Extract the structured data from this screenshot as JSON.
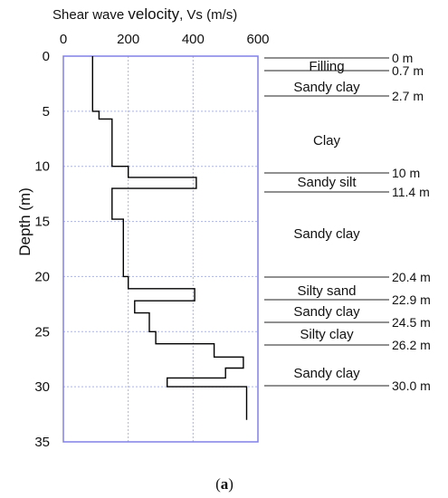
{
  "chart_data": {
    "type": "line",
    "title_prefix": "Shear wave ",
    "title_emph": "velocity",
    "title_suffix": ", Vs (m/s)",
    "xlabel": "Shear wave velocity, Vs (m/s)",
    "ylabel": "Depth (m)",
    "xlim": [
      0,
      600
    ],
    "ylim": [
      0,
      35
    ],
    "y_inverted": true,
    "x_axis_position": "top",
    "grid": true,
    "xticks": [
      0,
      200,
      400,
      600
    ],
    "yticks": [
      0,
      5,
      10,
      15,
      20,
      25,
      30,
      35
    ],
    "series": [
      {
        "values": [
          {
            "depth_top": 0,
            "depth_bottom": 5,
            "vs": 90
          },
          {
            "depth_top": 5,
            "depth_bottom": 5.7,
            "vs": 110
          },
          {
            "depth_top": 5.7,
            "depth_bottom": 10,
            "vs": 150
          },
          {
            "depth_top": 10,
            "depth_bottom": 11,
            "vs": 200
          },
          {
            "depth_top": 11,
            "depth_bottom": 12,
            "vs": 410
          },
          {
            "depth_top": 12,
            "depth_bottom": 14.8,
            "vs": 150
          },
          {
            "depth_top": 14.8,
            "depth_bottom": 20,
            "vs": 185
          },
          {
            "depth_top": 20,
            "depth_bottom": 21.1,
            "vs": 200
          },
          {
            "depth_top": 21.1,
            "depth_bottom": 22.2,
            "vs": 405
          },
          {
            "depth_top": 22.2,
            "depth_bottom": 23.3,
            "vs": 220
          },
          {
            "depth_top": 23.3,
            "depth_bottom": 25,
            "vs": 265
          },
          {
            "depth_top": 25,
            "depth_bottom": 26.1,
            "vs": 285
          },
          {
            "depth_top": 26.1,
            "depth_bottom": 27.3,
            "vs": 465
          },
          {
            "depth_top": 27.3,
            "depth_bottom": 28.3,
            "vs": 555
          },
          {
            "depth_top": 28.3,
            "depth_bottom": 29.2,
            "vs": 500
          },
          {
            "depth_top": 29.2,
            "depth_bottom": 30.0,
            "vs": 320
          },
          {
            "depth_top": 30.0,
            "depth_bottom": 33,
            "vs": 565
          }
        ]
      }
    ],
    "layers": [
      {
        "name": "Filling",
        "top": 0,
        "bottom": 0.7
      },
      {
        "name": "Sandy clay",
        "top": 0.7,
        "bottom": 2.7
      },
      {
        "name": "Clay",
        "top": 2.7,
        "bottom": 10
      },
      {
        "name": "Sandy silt",
        "top": 10,
        "bottom": 11.4
      },
      {
        "name": "Sandy clay",
        "top": 11.4,
        "bottom": 20.4
      },
      {
        "name": "Silty sand",
        "top": 20.4,
        "bottom": 22.9
      },
      {
        "name": "Sandy clay",
        "top": 22.9,
        "bottom": 24.5
      },
      {
        "name": "Silty clay",
        "top": 24.5,
        "bottom": 26.2
      },
      {
        "name": "Sandy clay",
        "top": 26.2,
        "bottom": 30.0
      }
    ],
    "boundaries": [
      {
        "depth": 0,
        "label": "0 m"
      },
      {
        "depth": 0.7,
        "label": "0.7 m"
      },
      {
        "depth": 2.7,
        "label": "2.7 m"
      },
      {
        "depth": 10,
        "label": "10 m"
      },
      {
        "depth": 11.4,
        "label": "11.4 m"
      },
      {
        "depth": 20.4,
        "label": "20.4 m"
      },
      {
        "depth": 22.9,
        "label": "22.9 m"
      },
      {
        "depth": 24.5,
        "label": "24.5 m"
      },
      {
        "depth": 26.2,
        "label": "26.2 m"
      },
      {
        "depth": 30.0,
        "label": "30.0 m"
      }
    ]
  },
  "caption": {
    "open": "(",
    "letter": "a",
    "close": ")"
  },
  "colors": {
    "frame": "#8080e6",
    "grid": "#aab4e6",
    "profile": "#000000",
    "text": "#111111",
    "divider": "#222222"
  }
}
